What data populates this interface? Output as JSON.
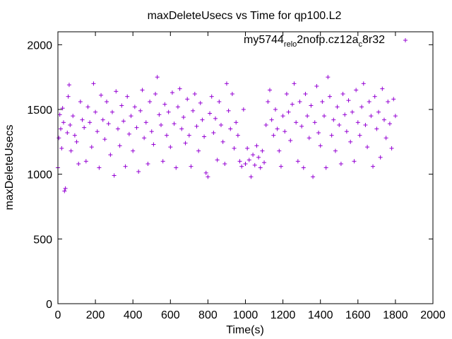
{
  "chart_data": {
    "type": "scatter",
    "title": "maxDeleteUsecs vs Time for qp100.L2",
    "xlabel": "Time(s)",
    "ylabel": "maxDeleteUsecs",
    "xlim": [
      0,
      2000
    ],
    "ylim": [
      0,
      2100
    ],
    "xticks": [
      0,
      200,
      400,
      600,
      800,
      1000,
      1200,
      1400,
      1600,
      1800,
      2000
    ],
    "yticks": [
      0,
      500,
      1000,
      1500,
      2000
    ],
    "grid": false,
    "legend_position": "top-right",
    "marker": "+",
    "color": "#9400d3",
    "series": [
      {
        "name_parts": {
          "p1": "my5744",
          "s1": "rel",
          "p2": "",
          "s2": "o",
          "p3": "2nofp.cz12a",
          "s3": "c",
          "p4": "8r32"
        },
        "sample_points": [
          [
            0,
            1050
          ],
          [
            5,
            1280
          ],
          [
            10,
            1460
          ],
          [
            15,
            1350
          ],
          [
            20,
            1200
          ],
          [
            25,
            1510
          ],
          [
            30,
            1400
          ],
          [
            35,
            870
          ],
          [
            40,
            890
          ],
          [
            50,
            1320
          ],
          [
            55,
            1600
          ],
          [
            60,
            1690
          ],
          [
            65,
            1380
          ],
          [
            70,
            1180
          ],
          [
            80,
            1450
          ],
          [
            90,
            1300
          ],
          [
            100,
            1250
          ],
          [
            110,
            1080
          ],
          [
            120,
            1560
          ],
          [
            130,
            1420
          ],
          [
            140,
            1360
          ],
          [
            150,
            1100
          ],
          [
            160,
            1520
          ],
          [
            170,
            1400
          ],
          [
            180,
            1210
          ],
          [
            190,
            1700
          ],
          [
            200,
            1480
          ],
          [
            210,
            1330
          ],
          [
            220,
            1050
          ],
          [
            230,
            1610
          ],
          [
            240,
            1420
          ],
          [
            250,
            1270
          ],
          [
            260,
            1560
          ],
          [
            270,
            1390
          ],
          [
            280,
            1150
          ],
          [
            290,
            1480
          ],
          [
            300,
            990
          ],
          [
            310,
            1640
          ],
          [
            320,
            1350
          ],
          [
            330,
            1220
          ],
          [
            340,
            1530
          ],
          [
            350,
            1410
          ],
          [
            360,
            1060
          ],
          [
            370,
            1600
          ],
          [
            380,
            1310
          ],
          [
            390,
            1450
          ],
          [
            400,
            1180
          ],
          [
            410,
            1520
          ],
          [
            420,
            1360
          ],
          [
            430,
            1020
          ],
          [
            440,
            1490
          ],
          [
            450,
            1650
          ],
          [
            460,
            1280
          ],
          [
            470,
            1400
          ],
          [
            480,
            1080
          ],
          [
            490,
            1560
          ],
          [
            500,
            1330
          ],
          [
            510,
            1230
          ],
          [
            520,
            1620
          ],
          [
            530,
            1750
          ],
          [
            540,
            1460
          ],
          [
            550,
            1380
          ],
          [
            560,
            1100
          ],
          [
            570,
            1540
          ],
          [
            580,
            1300
          ],
          [
            590,
            1480
          ],
          [
            600,
            1210
          ],
          [
            610,
            1630
          ],
          [
            620,
            1390
          ],
          [
            630,
            1050
          ],
          [
            640,
            1520
          ],
          [
            650,
            1660
          ],
          [
            660,
            1350
          ],
          [
            670,
            1440
          ],
          [
            680,
            1240
          ],
          [
            690,
            1580
          ],
          [
            700,
            1300
          ],
          [
            710,
            1060
          ],
          [
            720,
            1490
          ],
          [
            730,
            1620
          ],
          [
            740,
            1370
          ],
          [
            750,
            1180
          ],
          [
            760,
            1550
          ],
          [
            770,
            1420
          ],
          [
            780,
            1290
          ],
          [
            790,
            1010
          ],
          [
            800,
            980
          ],
          [
            810,
            1470
          ],
          [
            820,
            1600
          ],
          [
            830,
            1320
          ],
          [
            840,
            1430
          ],
          [
            850,
            1110
          ],
          [
            860,
            1560
          ],
          [
            870,
            1380
          ],
          [
            880,
            1250
          ],
          [
            890,
            1080
          ],
          [
            900,
            1700
          ],
          [
            910,
            1490
          ],
          [
            920,
            1350
          ],
          [
            930,
            1620
          ],
          [
            940,
            1200
          ],
          [
            950,
            1400
          ],
          [
            960,
            1300
          ],
          [
            970,
            1100
          ],
          [
            980,
            1060
          ],
          [
            990,
            1500
          ],
          [
            1000,
            1080
          ],
          [
            1010,
            1200
          ],
          [
            1020,
            1110
          ],
          [
            1030,
            980
          ],
          [
            1040,
            1150
          ],
          [
            1050,
            1070
          ],
          [
            1060,
            1220
          ],
          [
            1070,
            1130
          ],
          [
            1080,
            1050
          ],
          [
            1090,
            1180
          ],
          [
            1100,
            1090
          ],
          [
            1110,
            1380
          ],
          [
            1120,
            1560
          ],
          [
            1130,
            1650
          ],
          [
            1140,
            1420
          ],
          [
            1150,
            1300
          ],
          [
            1160,
            1500
          ],
          [
            1170,
            1350
          ],
          [
            1180,
            1180
          ],
          [
            1190,
            1060
          ],
          [
            1200,
            1450
          ],
          [
            1210,
            1330
          ],
          [
            1220,
            1620
          ],
          [
            1230,
            1480
          ],
          [
            1240,
            1260
          ],
          [
            1250,
            1540
          ],
          [
            1260,
            1700
          ],
          [
            1270,
            1400
          ],
          [
            1280,
            1100
          ],
          [
            1290,
            1560
          ],
          [
            1300,
            1370
          ],
          [
            1310,
            1050
          ],
          [
            1320,
            1620
          ],
          [
            1330,
            1450
          ],
          [
            1340,
            1280
          ],
          [
            1350,
            1530
          ],
          [
            1360,
            980
          ],
          [
            1370,
            1400
          ],
          [
            1380,
            1680
          ],
          [
            1390,
            1320
          ],
          [
            1400,
            1220
          ],
          [
            1410,
            1560
          ],
          [
            1420,
            1450
          ],
          [
            1430,
            1050
          ],
          [
            1440,
            1750
          ],
          [
            1450,
            1600
          ],
          [
            1460,
            1300
          ],
          [
            1470,
            1420
          ],
          [
            1480,
            1180
          ],
          [
            1490,
            1520
          ],
          [
            1500,
            1380
          ],
          [
            1510,
            1080
          ],
          [
            1520,
            1620
          ],
          [
            1530,
            1460
          ],
          [
            1540,
            1330
          ],
          [
            1550,
            1570
          ],
          [
            1560,
            1250
          ],
          [
            1570,
            1480
          ],
          [
            1580,
            1100
          ],
          [
            1590,
            1650
          ],
          [
            1600,
            1400
          ],
          [
            1610,
            1300
          ],
          [
            1620,
            1520
          ],
          [
            1630,
            1700
          ],
          [
            1640,
            1380
          ],
          [
            1650,
            1210
          ],
          [
            1660,
            1560
          ],
          [
            1670,
            1450
          ],
          [
            1680,
            1060
          ],
          [
            1690,
            1600
          ],
          [
            1700,
            1350
          ],
          [
            1710,
            1480
          ],
          [
            1720,
            1130
          ],
          [
            1730,
            1660
          ],
          [
            1740,
            1420
          ],
          [
            1750,
            1280
          ],
          [
            1760,
            1560
          ],
          [
            1770,
            1390
          ],
          [
            1780,
            1200
          ],
          [
            1790,
            1580
          ],
          [
            1800,
            1450
          ]
        ]
      }
    ]
  }
}
